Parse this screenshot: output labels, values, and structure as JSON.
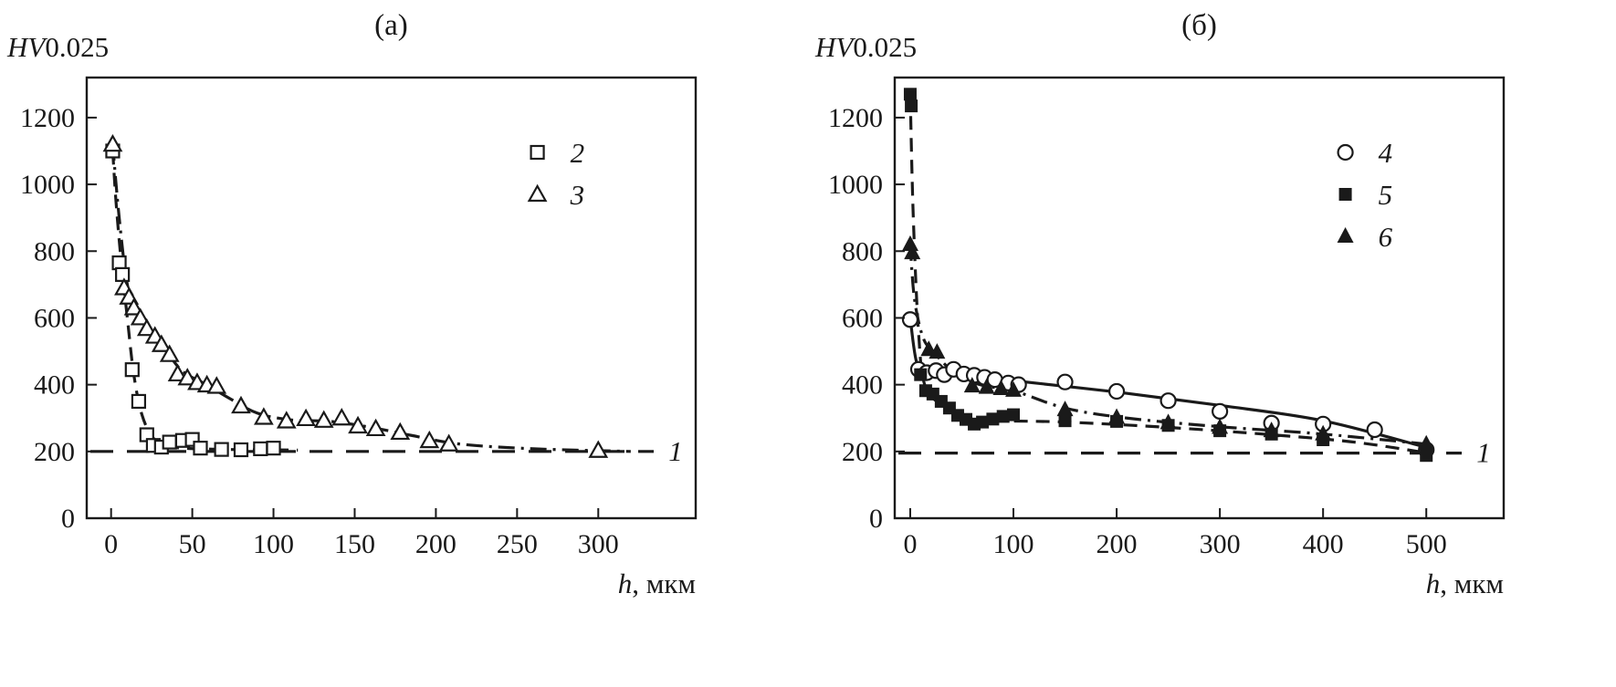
{
  "figure": {
    "background": "#ffffff",
    "line_color": "#1a1a1a",
    "marker_fill_open": "#ffffff"
  },
  "chart_data": [
    {
      "type": "line",
      "panel_label": "(а)",
      "y_axis_title_italic": "HV",
      "y_axis_title_rest": "0.025",
      "x_axis_title_italic": "h",
      "x_axis_title_rest": ", мкм",
      "xlim": [
        -15,
        360
      ],
      "ylim": [
        0,
        1320
      ],
      "xticks": [
        0,
        50,
        100,
        150,
        200,
        250,
        300
      ],
      "yticks": [
        0,
        200,
        400,
        600,
        800,
        1000,
        1200
      ],
      "grid": false,
      "legend_position": "top-right",
      "baseline": {
        "label": "1",
        "y": 200,
        "line": "long-dash"
      },
      "series": [
        {
          "name": "2",
          "marker": "open-square",
          "line": "dashed",
          "points": [
            [
              1,
              1100
            ],
            [
              5,
              765
            ],
            [
              7,
              730
            ],
            [
              13,
              445
            ],
            [
              17,
              350
            ],
            [
              22,
              250
            ],
            [
              26,
              218
            ],
            [
              31,
              213
            ],
            [
              36,
              228
            ],
            [
              44,
              233
            ],
            [
              50,
              236
            ],
            [
              55,
              210
            ],
            [
              68,
              206
            ],
            [
              80,
              205
            ],
            [
              92,
              208
            ],
            [
              100,
              210
            ]
          ],
          "line_points": [
            [
              1,
              1100
            ],
            [
              3,
              950
            ],
            [
              6,
              780
            ],
            [
              10,
              600
            ],
            [
              14,
              430
            ],
            [
              19,
              310
            ],
            [
              26,
              240
            ],
            [
              35,
              215
            ],
            [
              60,
              207
            ],
            [
              115,
              204
            ]
          ]
        },
        {
          "name": "3",
          "marker": "open-triangle",
          "line": "dash-dot",
          "points": [
            [
              1,
              1120
            ],
            [
              8,
              690
            ],
            [
              11,
              662
            ],
            [
              14,
              630
            ],
            [
              18,
              600
            ],
            [
              22,
              568
            ],
            [
              27,
              545
            ],
            [
              31,
              520
            ],
            [
              36,
              490
            ],
            [
              41,
              432
            ],
            [
              47,
              420
            ],
            [
              53,
              406
            ],
            [
              59,
              399
            ],
            [
              65,
              395
            ],
            [
              80,
              336
            ],
            [
              94,
              302
            ],
            [
              108,
              291
            ],
            [
              120,
              298
            ],
            [
              131,
              293
            ],
            [
              142,
              300
            ],
            [
              152,
              276
            ],
            [
              163,
              268
            ],
            [
              178,
              257
            ],
            [
              196,
              232
            ],
            [
              208,
              222
            ],
            [
              300,
              203
            ]
          ],
          "line_points": [
            [
              1,
              1120
            ],
            [
              5,
              900
            ],
            [
              10,
              700
            ],
            [
              16,
              615
            ],
            [
              24,
              556
            ],
            [
              34,
              500
            ],
            [
              44,
              440
            ],
            [
              58,
              402
            ],
            [
              74,
              356
            ],
            [
              90,
              315
            ],
            [
              110,
              295
            ],
            [
              135,
              290
            ],
            [
              160,
              272
            ],
            [
              185,
              248
            ],
            [
              215,
              222
            ],
            [
              260,
              208
            ],
            [
              320,
              200
            ]
          ]
        }
      ]
    },
    {
      "type": "line",
      "panel_label": "(б)",
      "y_axis_title_italic": "HV",
      "y_axis_title_rest": "0.025",
      "x_axis_title_italic": "h",
      "x_axis_title_rest": ", мкм",
      "xlim": [
        -15,
        575
      ],
      "ylim": [
        0,
        1320
      ],
      "xticks": [
        0,
        100,
        200,
        300,
        400,
        500
      ],
      "yticks": [
        0,
        200,
        400,
        600,
        800,
        1000,
        1200
      ],
      "grid": false,
      "legend_position": "top-right",
      "baseline": {
        "label": "1",
        "y": 195,
        "line": "long-dash"
      },
      "series": [
        {
          "name": "4",
          "marker": "open-circle",
          "line": "solid",
          "points": [
            [
              0,
              595
            ],
            [
              8,
              446
            ],
            [
              16,
              436
            ],
            [
              25,
              442
            ],
            [
              33,
              430
            ],
            [
              42,
              446
            ],
            [
              52,
              432
            ],
            [
              62,
              428
            ],
            [
              72,
              422
            ],
            [
              82,
              415
            ],
            [
              95,
              405
            ],
            [
              105,
              400
            ],
            [
              150,
              408
            ],
            [
              200,
              380
            ],
            [
              250,
              352
            ],
            [
              300,
              320
            ],
            [
              350,
              285
            ],
            [
              400,
              282
            ],
            [
              450,
              265
            ],
            [
              500,
              205
            ]
          ],
          "line_points": [
            [
              0,
              600
            ],
            [
              6,
              470
            ],
            [
              15,
              445
            ],
            [
              60,
              430
            ],
            [
              100,
              412
            ],
            [
              200,
              378
            ],
            [
              300,
              338
            ],
            [
              400,
              292
            ],
            [
              500,
              212
            ]
          ]
        },
        {
          "name": "5",
          "marker": "filled-square",
          "line": "dashed",
          "points": [
            [
              0,
              1270
            ],
            [
              1,
              1235
            ],
            [
              10,
              430
            ],
            [
              15,
              382
            ],
            [
              22,
              372
            ],
            [
              30,
              350
            ],
            [
              38,
              330
            ],
            [
              46,
              308
            ],
            [
              54,
              296
            ],
            [
              62,
              282
            ],
            [
              70,
              288
            ],
            [
              80,
              297
            ],
            [
              90,
              305
            ],
            [
              100,
              310
            ],
            [
              150,
              292
            ],
            [
              200,
              290
            ],
            [
              250,
              278
            ],
            [
              300,
              262
            ],
            [
              350,
              252
            ],
            [
              400,
              235
            ],
            [
              500,
              188
            ]
          ],
          "line_points": [
            [
              0,
              1270
            ],
            [
              3,
              900
            ],
            [
              8,
              560
            ],
            [
              14,
              400
            ],
            [
              30,
              340
            ],
            [
              55,
              300
            ],
            [
              90,
              292
            ],
            [
              150,
              288
            ],
            [
              250,
              272
            ],
            [
              350,
              250
            ],
            [
              430,
              228
            ],
            [
              500,
              196
            ]
          ]
        },
        {
          "name": "6",
          "marker": "filled-triangle",
          "line": "dash-dot",
          "points": [
            [
              0,
              820
            ],
            [
              2,
              795
            ],
            [
              18,
              505
            ],
            [
              26,
              497
            ],
            [
              60,
              396
            ],
            [
              74,
              392
            ],
            [
              88,
              388
            ],
            [
              100,
              383
            ],
            [
              150,
              325
            ],
            [
              200,
              302
            ],
            [
              250,
              286
            ],
            [
              300,
              272
            ],
            [
              350,
              262
            ],
            [
              400,
              252
            ],
            [
              500,
              222
            ]
          ],
          "line_points": [
            [
              0,
              820
            ],
            [
              4,
              660
            ],
            [
              12,
              545
            ],
            [
              22,
              500
            ],
            [
              45,
              430
            ],
            [
              70,
              398
            ],
            [
              100,
              382
            ],
            [
              150,
              330
            ],
            [
              210,
              300
            ],
            [
              300,
              274
            ],
            [
              400,
              252
            ],
            [
              500,
              222
            ]
          ]
        }
      ]
    }
  ]
}
